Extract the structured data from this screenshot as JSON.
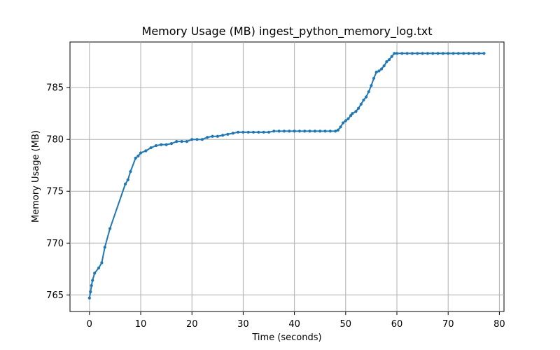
{
  "chart_data": {
    "type": "line",
    "title": "Memory Usage (MB) ingest_python_memory_log.txt",
    "xlabel": "Time (seconds)",
    "ylabel": "Memory Usage (MB)",
    "xlim": [
      -3.8,
      80.9
    ],
    "ylim": [
      763.4,
      789.4
    ],
    "xticks": [
      0,
      10,
      20,
      30,
      40,
      50,
      60,
      70,
      80
    ],
    "yticks": [
      765,
      770,
      775,
      780,
      785
    ],
    "grid": true,
    "legend": "none",
    "colors": {
      "line": "#1f77b4",
      "grid": "#b0b0b0",
      "axis": "#000000"
    },
    "series": [
      {
        "x": [
          0,
          0.2,
          0.4,
          0.6,
          1.0,
          1.8,
          2.4,
          3.0,
          4.0,
          7.0,
          7.5,
          8.0,
          9.0,
          9.5,
          10.0,
          11.0,
          12.0,
          13.0,
          14.0,
          15.0,
          16.0,
          17.0,
          18.0,
          19.0,
          20.0,
          21.0,
          22.0,
          23.0,
          24.0,
          25.0,
          26.0,
          27.0,
          28.0,
          29.0,
          30.0,
          31.0,
          32.0,
          33.0,
          34.0,
          35.0,
          36.0,
          37.0,
          38.0,
          39.0,
          40.0,
          41.0,
          42.0,
          43.0,
          44.0,
          45.0,
          46.0,
          47.0,
          48.0,
          48.5,
          49.0,
          49.5,
          50.0,
          50.5,
          51.0,
          51.3,
          52.0,
          52.5,
          53.0,
          53.5,
          54.0,
          54.5,
          55.0,
          55.5,
          56.0,
          56.5,
          57.0,
          57.5,
          58.0,
          58.5,
          59.0,
          59.5,
          60.0,
          61.0,
          62.0,
          63.0,
          64.0,
          65.0,
          66.0,
          67.0,
          68.0,
          69.0,
          70.0,
          71.0,
          72.0,
          73.0,
          74.0,
          75.0,
          76.0,
          77.0
        ],
        "values": [
          764.7,
          765.3,
          765.9,
          766.4,
          767.1,
          767.6,
          768.1,
          769.6,
          771.4,
          775.7,
          776.1,
          776.9,
          778.2,
          778.4,
          778.7,
          778.9,
          779.2,
          779.4,
          779.5,
          779.5,
          779.6,
          779.8,
          779.8,
          779.8,
          780.0,
          780.0,
          780.0,
          780.2,
          780.3,
          780.3,
          780.4,
          780.5,
          780.6,
          780.7,
          780.7,
          780.7,
          780.7,
          780.7,
          780.7,
          780.7,
          780.8,
          780.8,
          780.8,
          780.8,
          780.8,
          780.8,
          780.8,
          780.8,
          780.8,
          780.8,
          780.8,
          780.8,
          780.8,
          780.9,
          781.2,
          781.6,
          781.8,
          782.0,
          782.3,
          782.5,
          782.7,
          783.0,
          783.4,
          783.8,
          784.1,
          784.6,
          785.2,
          785.9,
          786.5,
          786.6,
          786.8,
          787.1,
          787.5,
          787.7,
          788.0,
          788.3,
          788.3,
          788.3,
          788.3,
          788.3,
          788.3,
          788.3,
          788.3,
          788.3,
          788.3,
          788.3,
          788.3,
          788.3,
          788.3,
          788.3,
          788.3,
          788.3,
          788.3,
          788.3
        ]
      }
    ]
  }
}
